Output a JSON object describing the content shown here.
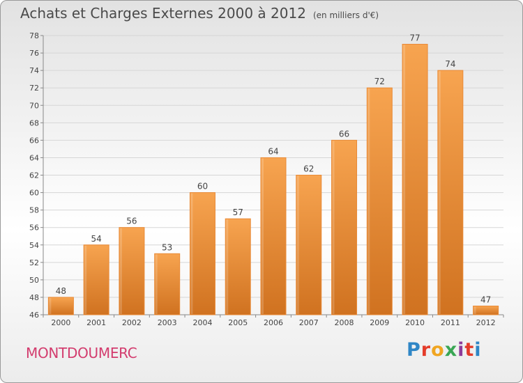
{
  "header": {
    "title": "Achats et Charges Externes 2000 à 2012",
    "subtitle": "(en milliers d'€)"
  },
  "footer": {
    "commune": "MONTDOUMERC",
    "logo_text": "Proxiti"
  },
  "colors": {
    "bar_top": "#f7a450",
    "bar_bottom": "#d07220",
    "bar_edge": "#e98a36",
    "commune_text": "#d33c6e"
  },
  "chart_data": {
    "type": "bar",
    "title": "Achats et Charges Externes 2000 à 2012",
    "subtitle": "(en milliers d'€)",
    "xlabel": "",
    "ylabel": "",
    "categories": [
      "2000",
      "2001",
      "2002",
      "2003",
      "2004",
      "2005",
      "2006",
      "2007",
      "2008",
      "2009",
      "2010",
      "2011",
      "2012"
    ],
    "values": [
      48,
      54,
      56,
      53,
      60,
      57,
      64,
      62,
      66,
      72,
      77,
      74,
      47
    ],
    "ylim": [
      46,
      78
    ],
    "yticks": [
      46,
      48,
      50,
      52,
      54,
      56,
      58,
      60,
      62,
      64,
      66,
      68,
      70,
      72,
      74,
      76,
      78
    ],
    "grid": true,
    "legend": "none"
  }
}
